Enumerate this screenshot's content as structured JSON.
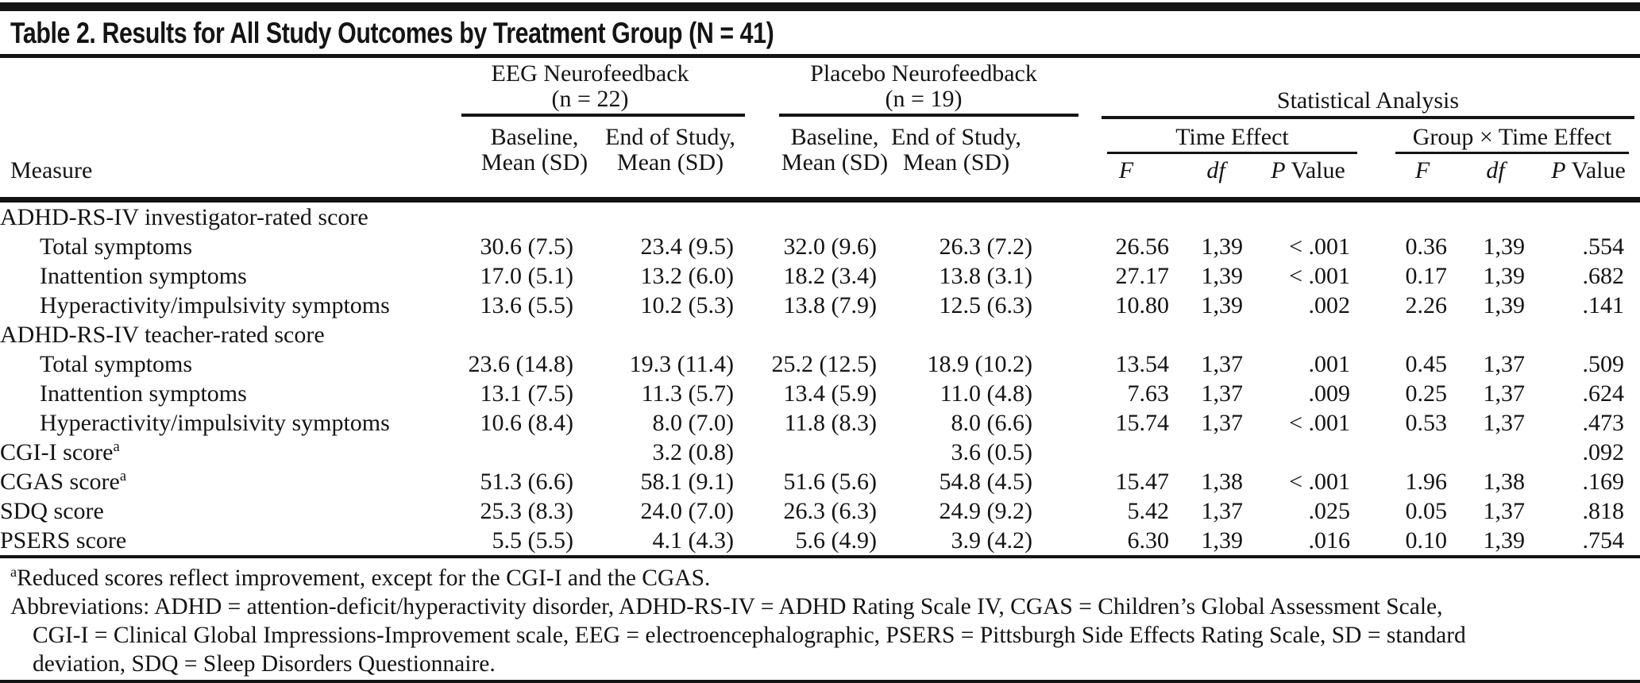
{
  "title": "Table 2. Results for All Study Outcomes by Treatment Group (N = 41)",
  "header": {
    "measure_label": "Measure",
    "group1_name": "EEG Neurofeedback",
    "group1_n": "(n = 22)",
    "group2_name": "Placebo Neurofeedback",
    "group2_n": "(n = 19)",
    "stat_label": "Statistical Analysis",
    "effect1_label": "Time Effect",
    "effect2_label": "Group × Time Effect",
    "baseline_line1": "Baseline,",
    "end_line1": "End of Study,",
    "mean_line2": "Mean (SD)",
    "f_label": "F",
    "df_label": "df",
    "p_label": "P",
    "p_value_rest": " Value"
  },
  "table": {
    "columns": [
      "Measure",
      "EEG Baseline Mean (SD)",
      "EEG End of Study Mean (SD)",
      "Placebo Baseline Mean (SD)",
      "Placebo End of Study Mean (SD)",
      "Time Effect F",
      "Time Effect df",
      "Time Effect P Value",
      "Group × Time Effect F",
      "Group × Time Effect df",
      "Group × Time Effect P Value"
    ],
    "rows": [
      {
        "label": "ADHD-RS-IV investigator-rated score",
        "type": "section",
        "values": [
          "",
          "",
          "",
          "",
          "",
          "",
          "",
          "",
          "",
          ""
        ]
      },
      {
        "label": "Total symptoms",
        "type": "sub",
        "values": [
          "30.6 (7.5)",
          "23.4 (9.5)",
          "32.0 (9.6)",
          "26.3 (7.2)",
          "26.56",
          "1,39",
          "< .001",
          "0.36",
          "1,39",
          ".554"
        ]
      },
      {
        "label": "Inattention symptoms",
        "type": "sub",
        "values": [
          "17.0 (5.1)",
          "13.2 (6.0)",
          "18.2 (3.4)",
          "13.8 (3.1)",
          "27.17",
          "1,39",
          "< .001",
          "0.17",
          "1,39",
          ".682"
        ]
      },
      {
        "label": "Hyperactivity/impulsivity symptoms",
        "type": "sub",
        "values": [
          "13.6 (5.5)",
          "10.2 (5.3)",
          "13.8 (7.9)",
          "12.5 (6.3)",
          "10.80",
          "1,39",
          ".002",
          "2.26",
          "1,39",
          ".141"
        ]
      },
      {
        "label": "ADHD-RS-IV teacher-rated score",
        "type": "section",
        "values": [
          "",
          "",
          "",
          "",
          "",
          "",
          "",
          "",
          "",
          ""
        ]
      },
      {
        "label": "Total symptoms",
        "type": "sub",
        "values": [
          "23.6 (14.8)",
          "19.3 (11.4)",
          "25.2 (12.5)",
          "18.9 (10.2)",
          "13.54",
          "1,37",
          ".001",
          "0.45",
          "1,37",
          ".509"
        ]
      },
      {
        "label": "Inattention symptoms",
        "type": "sub",
        "values": [
          "13.1 (7.5)",
          "11.3 (5.7)",
          "13.4 (5.9)",
          "11.0 (4.8)",
          "7.63",
          "1,37",
          ".009",
          "0.25",
          "1,37",
          ".624"
        ]
      },
      {
        "label": "Hyperactivity/impulsivity symptoms",
        "type": "sub",
        "values": [
          "10.6 (8.4)",
          "8.0 (7.0)",
          "11.8 (8.3)",
          "8.0 (6.6)",
          "15.74",
          "1,37",
          "< .001",
          "0.53",
          "1,37",
          ".473"
        ]
      },
      {
        "label": "CGI-I score",
        "sup": "a",
        "type": "main",
        "values": [
          "",
          "3.2 (0.8)",
          "",
          "3.6 (0.5)",
          "",
          "",
          "",
          "",
          "",
          ".092"
        ]
      },
      {
        "label": "CGAS score",
        "sup": "a",
        "type": "main",
        "values": [
          "51.3 (6.6)",
          "58.1 (9.1)",
          "51.6 (5.6)",
          "54.8 (4.5)",
          "15.47",
          "1,38",
          "< .001",
          "1.96",
          "1,38",
          ".169"
        ]
      },
      {
        "label": "SDQ score",
        "type": "main",
        "values": [
          "25.3 (8.3)",
          "24.0 (7.0)",
          "26.3 (6.3)",
          "24.9 (9.2)",
          "5.42",
          "1,37",
          ".025",
          "0.05",
          "1,37",
          ".818"
        ]
      },
      {
        "label": "PSERS score",
        "type": "main",
        "values": [
          "5.5 (5.5)",
          "4.1 (4.3)",
          "5.6 (4.9)",
          "3.9 (4.2)",
          "6.30",
          "1,39",
          ".016",
          "0.10",
          "1,39",
          ".754"
        ]
      }
    ]
  },
  "footnotes": {
    "note_sup": "a",
    "note_text": "Reduced scores reflect improvement, except for the CGI-I and the CGAS.",
    "abbr_lines": [
      "Abbreviations: ADHD = attention-deficit/hyperactivity disorder, ADHD-RS-IV = ADHD Rating Scale IV, CGAS = Children’s Global Assessment Scale,",
      "CGI-I = Clinical Global Impressions-Improvement scale, EEG = electroencephalographic, PSERS = Pittsburgh Side Effects Rating Scale, SD = standard",
      "deviation, SDQ = Sleep Disorders Questionnaire."
    ]
  },
  "colors": {
    "rule_color": "#141414",
    "text_color": "#141414",
    "background": "#ffffff"
  }
}
